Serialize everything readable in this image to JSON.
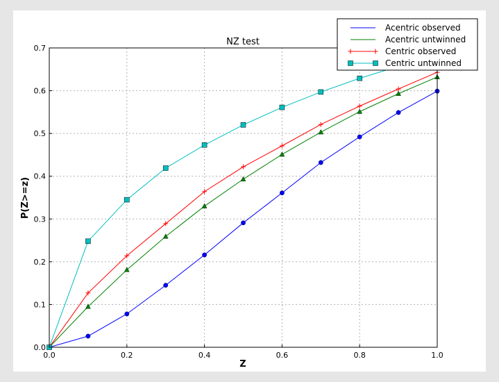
{
  "chart_data": {
    "type": "line",
    "title": "NZ test",
    "xlabel": "Z",
    "ylabel": "P(Z>=z)",
    "xlim": [
      0,
      1
    ],
    "ylim": [
      0,
      0.7
    ],
    "xticks": [
      "0.0",
      "0.2",
      "0.4",
      "0.6",
      "0.8",
      "1.0"
    ],
    "yticks": [
      "0.0",
      "0.1",
      "0.2",
      "0.3",
      "0.4",
      "0.5",
      "0.6",
      "0.7"
    ],
    "grid": true,
    "legend_position": "top-right",
    "x": [
      0,
      0.1,
      0.2,
      0.3,
      0.4,
      0.5,
      0.6,
      0.7,
      0.8,
      0.9,
      1.0
    ],
    "series": [
      {
        "name": "Acentric observed",
        "color": "#0000ff",
        "marker": "circle",
        "values": [
          0,
          0.026,
          0.078,
          0.145,
          0.216,
          0.291,
          0.361,
          0.432,
          0.492,
          0.549,
          0.599
        ]
      },
      {
        "name": "Acentric untwinned",
        "color": "#008000",
        "marker": "triangle",
        "values": [
          0,
          0.095,
          0.181,
          0.259,
          0.33,
          0.393,
          0.451,
          0.503,
          0.551,
          0.593,
          0.632
        ]
      },
      {
        "name": "Centric observed",
        "color": "#ff0000",
        "marker": "plus",
        "values": [
          0,
          0.127,
          0.214,
          0.289,
          0.364,
          0.422,
          0.471,
          0.521,
          0.564,
          0.604,
          0.643
        ]
      },
      {
        "name": "Centric untwinned",
        "color": "#00bfbf",
        "marker": "square",
        "values": [
          0,
          0.248,
          0.345,
          0.419,
          0.473,
          0.52,
          0.561,
          0.597,
          0.629,
          0.657,
          0.683
        ]
      }
    ]
  }
}
